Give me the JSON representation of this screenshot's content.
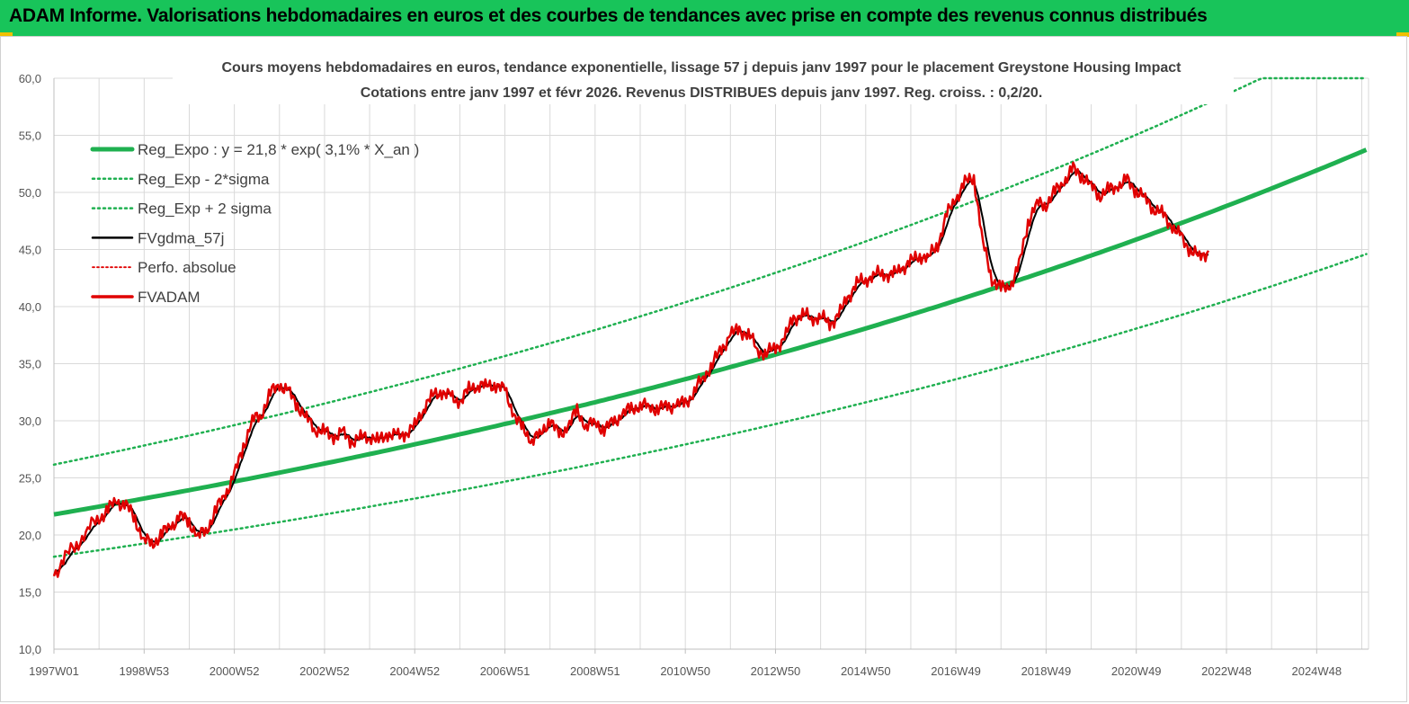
{
  "header": {
    "title": "ADAM Informe. Valorisations hebdomadaires en euros et des courbes de tendances avec prise en compte des revenus connus distribués"
  },
  "colors": {
    "banner": "#18c45a",
    "reg_expo": "#1fb050",
    "sigma": "#1fb050",
    "fvgdma": "#000000",
    "perfo": "#e00000",
    "fvadam": "#e00000",
    "grid": "#d9d9d9"
  },
  "chart_data": {
    "type": "line",
    "title_lines": [
      "Cours moyens hebdomadaires en euros, tendance exponentielle, lissage 57 j depuis janv 1997  pour le placement Greystone Housing Impact",
      "Cotations entre janv 1997  et févr 2026. Revenus DISTRIBUES  depuis janv 1997. Reg. croiss. : 0,2/20."
    ],
    "xlabel": "",
    "ylabel": "",
    "x_start_year": 1997.0,
    "x_end_year": 2026.15,
    "ylim": [
      10,
      60
    ],
    "y_ticks": [
      "10,0",
      "15,0",
      "20,0",
      "25,0",
      "30,0",
      "35,0",
      "40,0",
      "45,0",
      "50,0",
      "55,0",
      "60,0"
    ],
    "x_tick_labels": [
      "1997W01",
      "1998W53",
      "2000W52",
      "2002W52",
      "2004W52",
      "2006W51",
      "2008W51",
      "2010W50",
      "2012W50",
      "2014W50",
      "2016W49",
      "2018W49",
      "2020W49",
      "2022W48",
      "2024W48"
    ],
    "x_tick_years": [
      1997.0,
      1999.0,
      2001.0,
      2003.0,
      2005.0,
      2007.0,
      2009.0,
      2011.0,
      2013.0,
      2015.0,
      2017.0,
      2019.0,
      2021.0,
      2023.0,
      2025.0
    ],
    "grid": true,
    "legend_position": "top-left",
    "legend": [
      {
        "key": "reg_expo",
        "label": "Reg_Expo : y = 21,8 * exp( 3,1% *  X_an )"
      },
      {
        "key": "sigma_minus",
        "label": "Reg_Exp - 2*sigma"
      },
      {
        "key": "sigma_plus",
        "label": "Reg_Exp + 2 sigma"
      },
      {
        "key": "fvgdma",
        "label": "FVgdma_57j"
      },
      {
        "key": "perfo",
        "label": "Perfo. absolue"
      },
      {
        "key": "fvadam",
        "label": "FVADAM"
      }
    ],
    "regression": {
      "a": 21.8,
      "rate": 0.031,
      "sigma_upper_factor": 1.2,
      "sigma_lower_factor": 0.83,
      "upper_cap": 60
    },
    "series": [
      {
        "name": "FVADAM",
        "points": [
          [
            1997.0,
            16.4
          ],
          [
            1997.25,
            18.2
          ],
          [
            1997.5,
            19.0
          ],
          [
            1997.75,
            20.6
          ],
          [
            1998.0,
            21.4
          ],
          [
            1998.2,
            22.3
          ],
          [
            1998.4,
            22.9
          ],
          [
            1998.6,
            22.6
          ],
          [
            1998.8,
            21.4
          ],
          [
            1999.0,
            19.5
          ],
          [
            1999.2,
            19.3
          ],
          [
            1999.4,
            20.1
          ],
          [
            1999.6,
            20.8
          ],
          [
            1999.8,
            21.6
          ],
          [
            2000.0,
            21.2
          ],
          [
            2000.2,
            19.8
          ],
          [
            2000.4,
            20.6
          ],
          [
            2000.6,
            22.2
          ],
          [
            2000.8,
            23.6
          ],
          [
            2001.0,
            25.2
          ],
          [
            2001.2,
            27.8
          ],
          [
            2001.4,
            30.0
          ],
          [
            2001.6,
            30.6
          ],
          [
            2001.8,
            32.4
          ],
          [
            2002.0,
            33.2
          ],
          [
            2002.2,
            32.5
          ],
          [
            2002.4,
            31.4
          ],
          [
            2002.6,
            30.2
          ],
          [
            2002.8,
            29.3
          ],
          [
            2003.0,
            29.0
          ],
          [
            2003.2,
            28.6
          ],
          [
            2003.4,
            28.9
          ],
          [
            2003.6,
            28.2
          ],
          [
            2003.8,
            28.5
          ],
          [
            2004.0,
            28.7
          ],
          [
            2004.2,
            28.2
          ],
          [
            2004.4,
            28.9
          ],
          [
            2004.6,
            28.6
          ],
          [
            2004.8,
            28.9
          ],
          [
            2005.0,
            29.5
          ],
          [
            2005.2,
            31.2
          ],
          [
            2005.4,
            32.2
          ],
          [
            2005.6,
            32.6
          ],
          [
            2005.8,
            32.0
          ],
          [
            2006.0,
            31.7
          ],
          [
            2006.2,
            32.7
          ],
          [
            2006.4,
            33.2
          ],
          [
            2006.6,
            33.0
          ],
          [
            2006.8,
            33.2
          ],
          [
            2007.0,
            32.6
          ],
          [
            2007.2,
            30.6
          ],
          [
            2007.4,
            29.2
          ],
          [
            2007.6,
            28.4
          ],
          [
            2007.8,
            28.8
          ],
          [
            2008.0,
            30.2
          ],
          [
            2008.2,
            28.6
          ],
          [
            2008.4,
            29.6
          ],
          [
            2008.6,
            30.8
          ],
          [
            2008.8,
            29.6
          ],
          [
            2009.0,
            29.8
          ],
          [
            2009.2,
            29.3
          ],
          [
            2009.4,
            29.8
          ],
          [
            2009.6,
            30.6
          ],
          [
            2009.8,
            31.0
          ],
          [
            2010.0,
            31.4
          ],
          [
            2010.2,
            31.2
          ],
          [
            2010.4,
            31.1
          ],
          [
            2010.6,
            31.2
          ],
          [
            2010.8,
            31.4
          ],
          [
            2011.0,
            31.5
          ],
          [
            2011.2,
            32.6
          ],
          [
            2011.4,
            33.8
          ],
          [
            2011.6,
            35.0
          ],
          [
            2011.8,
            36.2
          ],
          [
            2012.0,
            37.6
          ],
          [
            2012.2,
            37.9
          ],
          [
            2012.4,
            37.6
          ],
          [
            2012.6,
            36.2
          ],
          [
            2012.8,
            35.9
          ],
          [
            2013.0,
            36.4
          ],
          [
            2013.2,
            37.2
          ],
          [
            2013.4,
            39.0
          ],
          [
            2013.6,
            39.3
          ],
          [
            2013.8,
            39.0
          ],
          [
            2014.0,
            39.1
          ],
          [
            2014.2,
            38.5
          ],
          [
            2014.4,
            39.2
          ],
          [
            2014.6,
            40.8
          ],
          [
            2014.8,
            42.0
          ],
          [
            2015.0,
            42.4
          ],
          [
            2015.2,
            42.8
          ],
          [
            2015.4,
            42.9
          ],
          [
            2015.6,
            42.7
          ],
          [
            2015.8,
            43.4
          ],
          [
            2016.0,
            43.9
          ],
          [
            2016.2,
            44.5
          ],
          [
            2016.4,
            44.3
          ],
          [
            2016.6,
            45.5
          ],
          [
            2016.8,
            48.0
          ],
          [
            2017.0,
            49.5
          ],
          [
            2017.2,
            50.8
          ],
          [
            2017.4,
            51.4
          ],
          [
            2017.6,
            45.5
          ],
          [
            2017.8,
            42.5
          ],
          [
            2018.0,
            41.5
          ],
          [
            2018.2,
            41.8
          ],
          [
            2018.4,
            43.5
          ],
          [
            2018.6,
            47.5
          ],
          [
            2018.8,
            49.0
          ],
          [
            2019.0,
            49.0
          ],
          [
            2019.2,
            50.0
          ],
          [
            2019.4,
            51.0
          ],
          [
            2019.6,
            52.0
          ],
          [
            2019.8,
            51.5
          ],
          [
            2020.0,
            50.5
          ],
          [
            2020.2,
            49.8
          ],
          [
            2020.4,
            50.2
          ],
          [
            2020.6,
            50.6
          ],
          [
            2020.8,
            51.0
          ],
          [
            2021.0,
            50.2
          ],
          [
            2021.2,
            49.4
          ],
          [
            2021.4,
            48.6
          ],
          [
            2021.6,
            48.0
          ],
          [
            2021.8,
            47.0
          ],
          [
            2022.0,
            46.0
          ],
          [
            2022.2,
            45.0
          ],
          [
            2022.4,
            44.3
          ],
          [
            2022.6,
            44.9
          ]
        ]
      }
    ]
  }
}
